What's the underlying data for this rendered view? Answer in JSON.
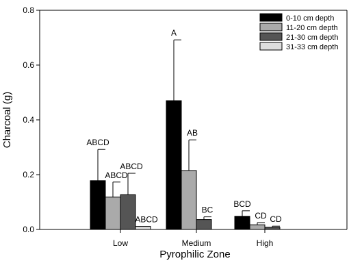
{
  "chart_data": {
    "type": "bar",
    "title": "",
    "xlabel": "Pyrophilic Zone",
    "ylabel": "Charcoal (g)",
    "categories": [
      "Low",
      "Medium",
      "High"
    ],
    "ylim": [
      0,
      0.8
    ],
    "yticks": [
      0.0,
      0.2,
      0.4,
      0.6,
      0.8
    ],
    "ytick_labels": [
      "0.0",
      "0.2",
      "0.4",
      "0.6",
      "0.8"
    ],
    "grid": false,
    "legend_position": "top-right",
    "series": [
      {
        "name": "0-10 cm depth",
        "color": "#000000",
        "values": [
          0.178,
          0.47,
          0.048
        ],
        "errors": [
          0.114,
          0.222,
          0.02
        ],
        "labels": [
          "ABCD",
          "A",
          "BCD"
        ]
      },
      {
        "name": "11-20 cm depth",
        "color": "#aaaaaa",
        "values": [
          0.118,
          0.215,
          0.017
        ],
        "errors": [
          0.055,
          0.112,
          0.008
        ],
        "labels": [
          "ABCD",
          "AB",
          "CD"
        ]
      },
      {
        "name": "21-30 cm depth",
        "color": "#555555",
        "values": [
          0.127,
          0.036,
          0.008
        ],
        "errors": [
          0.078,
          0.01,
          0.004
        ],
        "labels": [
          "ABCD",
          "BC",
          "CD"
        ]
      },
      {
        "name": "31-33 cm depth",
        "color": "#dddddd",
        "values": [
          0.011,
          null,
          null
        ],
        "errors": [
          0.0,
          null,
          null
        ],
        "labels": [
          "ABCD",
          "",
          ""
        ]
      }
    ]
  }
}
